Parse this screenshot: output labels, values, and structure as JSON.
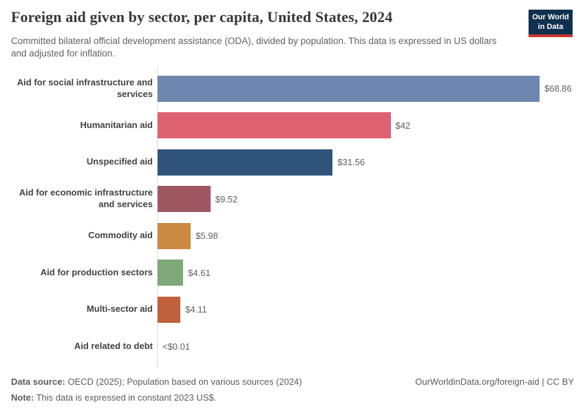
{
  "header": {
    "title": "Foreign aid given by sector, per capita, United States, 2024",
    "subtitle": "Committed bilateral official development assistance (ODA), divided by population. This data is expressed in US dollars and adjusted for inflation.",
    "logo": {
      "line1": "Our World",
      "line2": "in Data",
      "bg_color": "#10304f",
      "accent_color": "#cf3530"
    }
  },
  "chart_data": {
    "type": "bar",
    "orientation": "horizontal",
    "title": "Foreign aid given by sector, per capita, United States, 2024",
    "categories": [
      "Aid for social infrastructure and services",
      "Humanitarian aid",
      "Unspecified aid",
      "Aid for economic infrastructure and services",
      "Commodity aid",
      "Aid for production sectors",
      "Multi-sector aid",
      "Aid related to debt"
    ],
    "values": [
      68.86,
      42,
      31.56,
      9.52,
      5.98,
      4.61,
      4.11,
      0.005
    ],
    "value_labels": [
      "$68.86",
      "$42",
      "$31.56",
      "$9.52",
      "$5.98",
      "$4.61",
      "$4.11",
      "<$0.01"
    ],
    "bar_colors": [
      "#6d87b0",
      "#df6272",
      "#30547b",
      "#9f5861",
      "#ca8a42",
      "#7ea877",
      "#c0603c",
      "#999999"
    ],
    "xlabel": "",
    "ylabel": "",
    "xlim": [
      0,
      68.86
    ],
    "unit": "constant 2023 US$ per capita",
    "grid": false,
    "legend": "none"
  },
  "footer": {
    "source_label": "Data source:",
    "source_text": "OECD (2025); Population based on various sources (2024)",
    "note_label": "Note:",
    "note_text": "This data is expressed in constant 2023 US$.",
    "link_text": "OurWorldinData.org/foreign-aid | CC BY"
  }
}
